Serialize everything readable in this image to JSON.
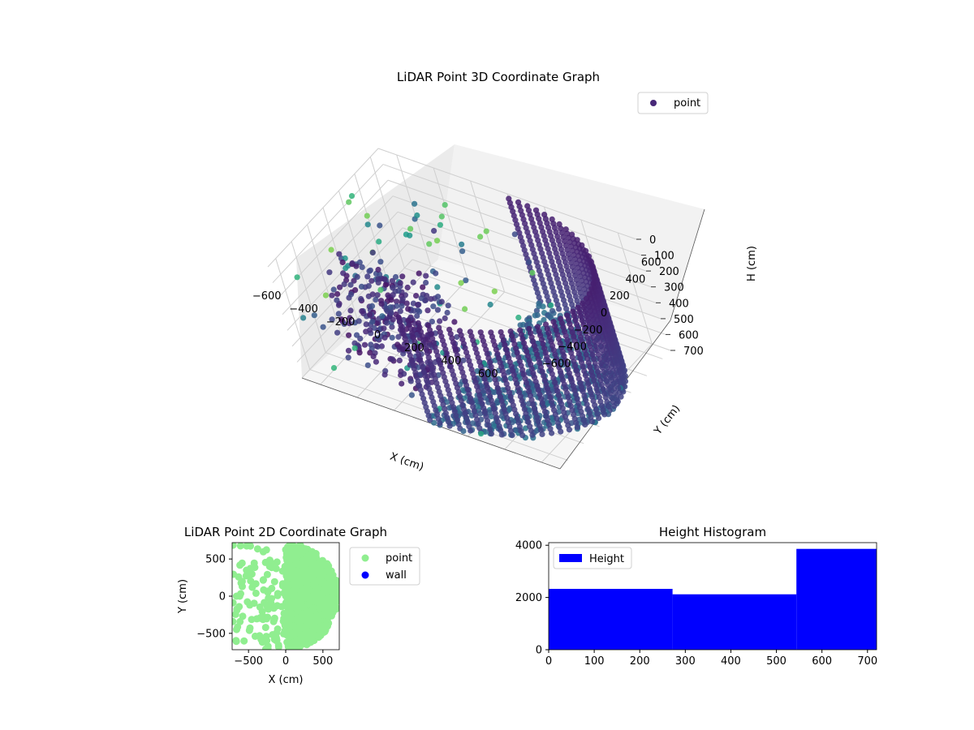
{
  "chart_data": [
    {
      "type": "scatter",
      "projection": "3d",
      "title": "LiDAR Point 3D Coordinate Graph",
      "xlabel": "X (cm)",
      "ylabel": "Y (cm)",
      "zlabel": "H (cm)",
      "xlim": [
        -700,
        700
      ],
      "ylim": [
        -700,
        700
      ],
      "zlim": [
        0,
        700
      ],
      "zaxis_inverted": true,
      "xticks": [
        "−600",
        "−400",
        "−200",
        "0",
        "200",
        "400",
        "600"
      ],
      "yticks": [
        "−600",
        "−400",
        "−200",
        "0",
        "200",
        "400",
        "600"
      ],
      "zticks": [
        "0",
        "100",
        "200",
        "300",
        "400",
        "500",
        "600",
        "700"
      ],
      "grid": true,
      "colormap": "viridis",
      "legend": {
        "placement": "top-right",
        "entries": [
          {
            "label": "point",
            "color": "#482878"
          }
        ]
      },
      "series": [
        {
          "name": "point",
          "description_values": "semicircular wall of radius ~700 cm for x >= 0 plus scattered interior points"
        }
      ]
    },
    {
      "type": "scatter",
      "title": "LiDAR Point 2D Coordinate Graph",
      "xlabel": "X (cm)",
      "ylabel": "Y (cm)",
      "xlim": [
        -720,
        720
      ],
      "ylim": [
        -720,
        720
      ],
      "xticks": [
        "−500",
        "0",
        "500"
      ],
      "yticks": [
        "−500",
        "0",
        "500"
      ],
      "legend": {
        "placement": "outside-right",
        "entries": [
          {
            "label": "point",
            "color": "#90ee90"
          },
          {
            "label": "wall",
            "color": "#0000ff"
          }
        ]
      }
    },
    {
      "type": "bar",
      "title": "Height Histogram",
      "xlim": [
        0,
        720
      ],
      "ylim": [
        0,
        4100
      ],
      "xticks": [
        "0",
        "100",
        "200",
        "300",
        "400",
        "500",
        "600",
        "700"
      ],
      "yticks": [
        "0",
        "2000",
        "4000"
      ],
      "bins": [
        {
          "start": 0,
          "end": 272,
          "count": 2330
        },
        {
          "start": 272,
          "end": 544,
          "count": 2120
        },
        {
          "start": 544,
          "end": 720,
          "count": 3860
        }
      ],
      "color": "#0000ff",
      "legend": {
        "placement": "top-left",
        "entries": [
          {
            "label": "Height",
            "color": "#0000ff"
          }
        ]
      }
    }
  ]
}
